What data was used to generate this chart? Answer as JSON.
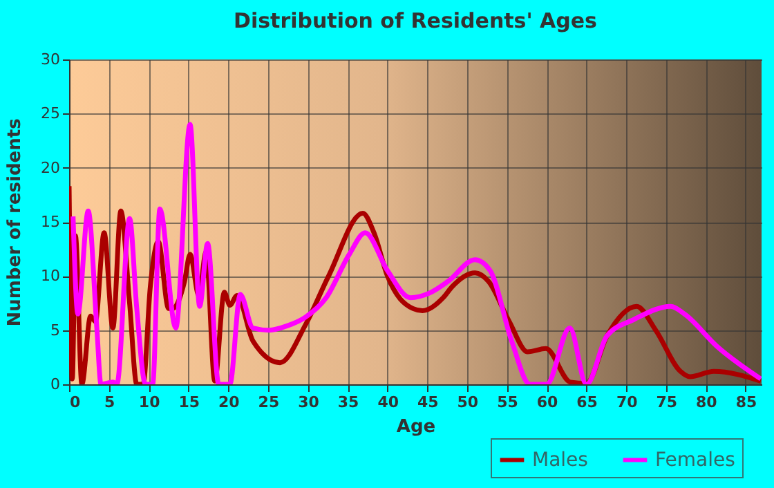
{
  "chart_data": {
    "type": "line",
    "title": "Distribution of Residents' Ages",
    "xlabel": "Age",
    "ylabel": "Number of residents",
    "xlim": [
      0,
      87
    ],
    "xticks": [
      0,
      5,
      10,
      15,
      20,
      25,
      30,
      35,
      40,
      45,
      50,
      55,
      60,
      65,
      70,
      75,
      80,
      85
    ],
    "ylim": [
      0,
      30
    ],
    "yticks": [
      0,
      5,
      10,
      15,
      20,
      25,
      30
    ],
    "grid": true,
    "legend": "bottom",
    "line_style": "solid",
    "marker": "none",
    "series": [
      {
        "name": "Males",
        "color": "#aa0000",
        "x": [
          0,
          0.4,
          0.8,
          1.6,
          2.7,
          3.3,
          4.4,
          5.5,
          6.5,
          7.6,
          8.5,
          9.3,
          10.2,
          11.2,
          12.5,
          13,
          14.5,
          15.2,
          16.3,
          17.2,
          18.3,
          19.5,
          20.2,
          21.1,
          23.1,
          26.5,
          29.7,
          32.6,
          36.9,
          38.3,
          40,
          43.2,
          44.4,
          47,
          48.1,
          51,
          52.7,
          55.3,
          57.6,
          59.9,
          63,
          65,
          67.6,
          71.3,
          73.7,
          76.8,
          78,
          81,
          86.9
        ],
        "values": [
          18.3,
          0.5,
          13.7,
          0,
          6.3,
          5.8,
          14,
          5.2,
          16,
          7.5,
          0,
          0,
          9,
          13.2,
          7,
          7,
          9.5,
          12,
          8.2,
          12.2,
          0.3,
          8.5,
          7.3,
          8.2,
          4,
          2,
          5.5,
          10,
          15.8,
          14,
          10,
          7,
          6.8,
          8,
          9,
          10.3,
          9.5,
          5.8,
          3,
          3.3,
          0.2,
          0.1,
          4.5,
          7.2,
          5,
          1.2,
          0.7,
          1.2,
          0.3
        ]
      },
      {
        "name": "Females",
        "color": "#ff00ff",
        "x": [
          0.5,
          1.1,
          2.4,
          3.5,
          4,
          5.5,
          6,
          7.6,
          8.5,
          9.6,
          10.5,
          11.4,
          13.4,
          15.2,
          16.4,
          17.4,
          18.8,
          20.2,
          21.5,
          23.1,
          25.1,
          27.4,
          29.7,
          32.3,
          35.2,
          37.2,
          40,
          42.9,
          45.2,
          47.6,
          51,
          52.9,
          55.6,
          57.9,
          60,
          62.9,
          65,
          67.6,
          71,
          75.6,
          77.3,
          81.4,
          86.9
        ],
        "values": [
          15.5,
          6.5,
          16,
          5,
          0,
          0.2,
          0,
          15.3,
          7,
          0,
          0,
          16.2,
          5.2,
          24,
          7.2,
          13,
          0,
          0,
          8.3,
          5.2,
          5,
          5.4,
          6.2,
          8,
          12,
          14,
          10.5,
          8,
          8.4,
          9.5,
          11.5,
          10.5,
          4,
          0,
          0,
          5.2,
          0,
          4.5,
          6,
          7.2,
          6.5,
          3.5,
          0.5
        ]
      }
    ]
  }
}
